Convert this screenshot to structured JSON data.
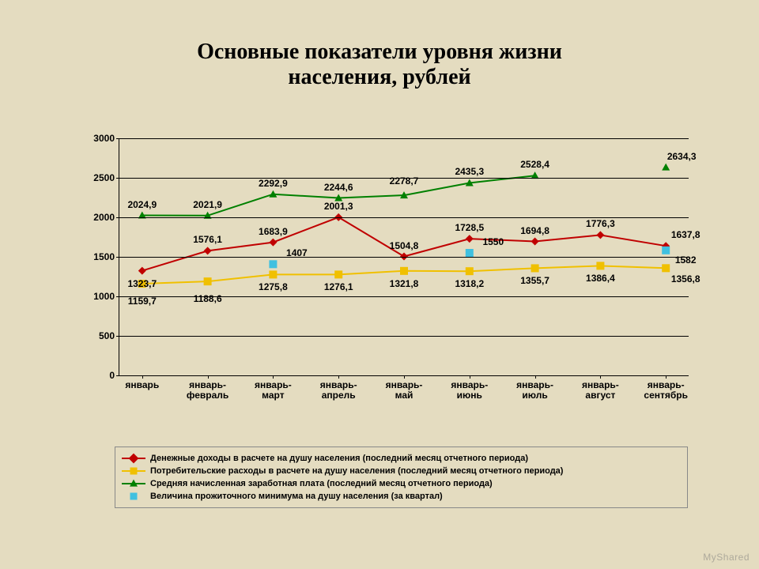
{
  "title_line1": "Основные показатели уровня жизни",
  "title_line2": "населения, рублей",
  "title_fontsize": 28,
  "background_color": "#e4dcc0",
  "chart": {
    "type": "line",
    "ylim": [
      0,
      3000
    ],
    "ytick_step": 500,
    "yticks": [
      0,
      500,
      1000,
      1500,
      2000,
      2500,
      3000
    ],
    "grid_color": "#000000",
    "axis_color": "#000000",
    "tick_fontsize": 12,
    "tick_fontweight": "bold",
    "categories": [
      "январь",
      "январь-\nфевраль",
      "январь-\nмарт",
      "январь-\nапрель",
      "январь-\nмай",
      "январь-\nиюнь",
      "январь-\nиюль",
      "январь-\nавгуст",
      "январь-\nсентябрь"
    ],
    "series": [
      {
        "id": "income",
        "label": "Денежные доходы в расчете на душу населения (последний месяц отчетного периода)",
        "color": "#c00000",
        "marker": "diamond",
        "line_width": 2,
        "values": [
          1323.7,
          1576.1,
          1683.9,
          2001.3,
          1504.8,
          1728.5,
          1694.8,
          1776.3,
          1637.8
        ],
        "value_labels": [
          "1323,7",
          "1576,1",
          "1683,9",
          "2001,3",
          "1504,8",
          "1728,5",
          "1694,8",
          "1776,3",
          "1637,8"
        ],
        "label_dy": [
          16,
          -14,
          -14,
          -14,
          -14,
          -14,
          -14,
          -14,
          -14
        ],
        "label_dx": [
          0,
          0,
          0,
          0,
          0,
          0,
          0,
          0,
          25
        ]
      },
      {
        "id": "consumer",
        "label": "Потребительские расходы в расчете на душу населения (последний месяц отчетного периода)",
        "color": "#f0c000",
        "marker": "square",
        "line_width": 2,
        "values": [
          1159.7,
          1188.6,
          1275.8,
          1276.1,
          1321.8,
          1318.2,
          1355.7,
          1386.4,
          1356.8
        ],
        "value_labels": [
          "1159,7",
          "1188,6",
          "1275,8",
          "1276,1",
          "1321,8",
          "1318,2",
          "1355,7",
          "1386,4",
          "1356,8"
        ],
        "label_dy": [
          22,
          22,
          16,
          16,
          16,
          16,
          16,
          16,
          14
        ],
        "label_dx": [
          0,
          0,
          0,
          0,
          0,
          0,
          0,
          0,
          25
        ]
      },
      {
        "id": "wage",
        "label": "Средняя начисленная заработная плата (последний месяц отчетного периода)",
        "color": "#008000",
        "marker": "triangle",
        "line_width": 2,
        "values": [
          2024.9,
          2021.9,
          2292.9,
          2244.6,
          2278.7,
          2435.3,
          2528.4,
          null,
          2634.3
        ],
        "value_labels": [
          "2024,9",
          "2021,9",
          "2292,9",
          "2244,6",
          "2278,7",
          "2435,3",
          "2528,4",
          "",
          "2634,3"
        ],
        "label_dy": [
          -14,
          -14,
          -14,
          -14,
          -18,
          -14,
          -14,
          0,
          -14
        ],
        "label_dx": [
          0,
          0,
          0,
          0,
          0,
          0,
          0,
          0,
          20
        ]
      },
      {
        "id": "minimum",
        "label": "Величина прожиточного минимума на душу населения (за квартал)",
        "color": "#40c0e0",
        "marker": "square",
        "line_width": 0,
        "values": [
          null,
          null,
          1407,
          null,
          null,
          1550,
          null,
          null,
          1582
        ],
        "value_labels": [
          "",
          "",
          "1407",
          "",
          "",
          "1550",
          "",
          "",
          "1582"
        ],
        "label_dy": [
          0,
          0,
          0,
          0,
          0,
          0,
          0,
          0,
          12
        ],
        "label_dx": [
          0,
          0,
          30,
          0,
          0,
          30,
          0,
          0,
          25
        ]
      }
    ]
  },
  "watermark": "MyShared"
}
